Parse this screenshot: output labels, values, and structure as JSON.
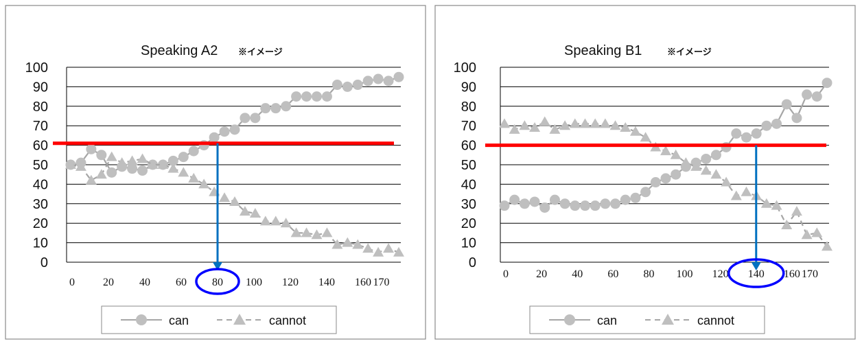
{
  "chart_data": [
    {
      "type": "line",
      "title": "Speaking A2",
      "title_note": "※イメージ",
      "xlabel": "",
      "ylabel": "",
      "x_ticks": [
        "0",
        "20",
        "40",
        "60",
        "80",
        "100",
        "120",
        "140",
        "160",
        "170"
      ],
      "ylim": [
        0,
        100
      ],
      "y_ticks": [
        "0",
        "10",
        "20",
        "30",
        "40",
        "50",
        "60",
        "70",
        "80",
        "90",
        "100"
      ],
      "grid": true,
      "legend": "bottom",
      "threshold_y": 61,
      "threshold_color": "#ff0000",
      "marker_x": 80,
      "marker_label": "80",
      "arrow_color": "#0070c0",
      "circle_color": "#0000ff",
      "series": [
        {
          "name": "can",
          "color": "#bfbfbf",
          "marker": "circle",
          "dash": false,
          "values": [
            50,
            51,
            58,
            55,
            46,
            49,
            48,
            47,
            50,
            50,
            52,
            54,
            57,
            60,
            64,
            67,
            68,
            74,
            74,
            79,
            79,
            80,
            85,
            85,
            85,
            85,
            91,
            90,
            91,
            93,
            94,
            93,
            95
          ]
        },
        {
          "name": "cannot",
          "color": "#bfbfbf",
          "marker": "triangle",
          "dash": true,
          "values": [
            50,
            49,
            42,
            45,
            54,
            51,
            52,
            53,
            50,
            50,
            48,
            46,
            43,
            40,
            36,
            33,
            31,
            26,
            25,
            21,
            21,
            20,
            15,
            15,
            14,
            15,
            9,
            10,
            9,
            7,
            5,
            7,
            5
          ]
        }
      ]
    },
    {
      "type": "line",
      "title": "Speaking B1",
      "title_note": "※イメージ",
      "xlabel": "",
      "ylabel": "",
      "x_ticks": [
        "0",
        "20",
        "40",
        "60",
        "80",
        "100",
        "120",
        "140",
        "160",
        "170"
      ],
      "ylim": [
        0,
        100
      ],
      "y_ticks": [
        "0",
        "10",
        "20",
        "30",
        "40",
        "50",
        "60",
        "70",
        "80",
        "90",
        "100"
      ],
      "grid": true,
      "legend": "bottom",
      "threshold_y": 60,
      "threshold_color": "#ff0000",
      "marker_x": 140,
      "marker_label": "140",
      "arrow_color": "#0070c0",
      "circle_color": "#0000ff",
      "series": [
        {
          "name": "can",
          "color": "#bfbfbf",
          "marker": "circle",
          "dash": false,
          "values": [
            29,
            32,
            30,
            31,
            28,
            32,
            30,
            29,
            29,
            29,
            30,
            30,
            32,
            33,
            36,
            41,
            43,
            45,
            49,
            51,
            53,
            55,
            59,
            66,
            64,
            66,
            70,
            71,
            81,
            74,
            86,
            85,
            92
          ]
        },
        {
          "name": "cannot",
          "color": "#bfbfbf",
          "marker": "triangle",
          "dash": true,
          "values": [
            71,
            68,
            70,
            69,
            72,
            68,
            70,
            71,
            71,
            71,
            71,
            70,
            69,
            67,
            64,
            59,
            57,
            55,
            51,
            49,
            47,
            45,
            41,
            34,
            36,
            34,
            30,
            29,
            19,
            26,
            14,
            15,
            8
          ]
        }
      ]
    }
  ]
}
